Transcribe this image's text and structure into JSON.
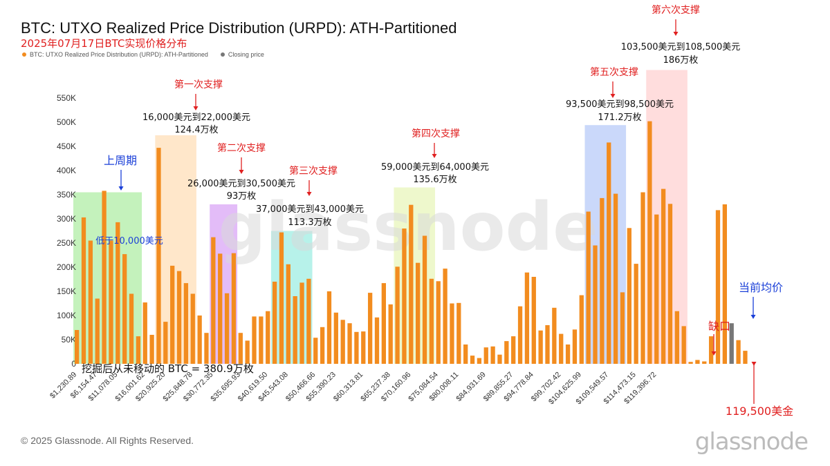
{
  "header": {
    "title": "BTC: UTXO Realized Price Distribution (URPD): ATH-Partitioned",
    "subtitle": "2025年07月17日BTC实现价格分布"
  },
  "legend": [
    {
      "label": "BTC: UTXO Realized Price Distribution (URPD): ATH-Partitioned",
      "color": "#f28c1f"
    },
    {
      "label": "Closing price",
      "color": "#777777"
    }
  ],
  "footer": {
    "copyright": "© 2025 Glassnode. All Rights Reserved.",
    "brand": "glassnode",
    "watermark": "glassnode"
  },
  "chart_data": {
    "type": "bar",
    "ylim": [
      0,
      550000
    ],
    "y_ticks": [
      {
        "value": 0,
        "label": "0"
      },
      {
        "value": 50000,
        "label": "50K"
      },
      {
        "value": 100000,
        "label": "100K"
      },
      {
        "value": 150000,
        "label": "150K"
      },
      {
        "value": 200000,
        "label": "200K"
      },
      {
        "value": 250000,
        "label": "250K"
      },
      {
        "value": 300000,
        "label": "300K"
      },
      {
        "value": 350000,
        "label": "350K"
      },
      {
        "value": 400000,
        "label": "400K"
      },
      {
        "value": 450000,
        "label": "450K"
      },
      {
        "value": 500000,
        "label": "500K"
      },
      {
        "value": 550000,
        "label": "550K"
      }
    ],
    "x_ticks": [
      {
        "index": 0,
        "label": "$1,230.89"
      },
      {
        "index": 3,
        "label": "$6,154.47"
      },
      {
        "index": 6,
        "label": "$11,078.05"
      },
      {
        "index": 10,
        "label": "$16,001.62"
      },
      {
        "index": 13,
        "label": "$20,925.20"
      },
      {
        "index": 17,
        "label": "$25,848.78"
      },
      {
        "index": 20,
        "label": "$30,772.35"
      },
      {
        "index": 24,
        "label": "$35,695.93"
      },
      {
        "index": 28,
        "label": "$40,619.50"
      },
      {
        "index": 31,
        "label": "$45,543.08"
      },
      {
        "index": 35,
        "label": "$50,466.66"
      },
      {
        "index": 38,
        "label": "$55,390.23"
      },
      {
        "index": 42,
        "label": "$60,313.81"
      },
      {
        "index": 46,
        "label": "$65,237.38"
      },
      {
        "index": 49,
        "label": "$70,160.96"
      },
      {
        "index": 53,
        "label": "$75,084.54"
      },
      {
        "index": 56,
        "label": "$80,008.11"
      },
      {
        "index": 60,
        "label": "$84,931.69"
      },
      {
        "index": 64,
        "label": "$89,855.27"
      },
      {
        "index": 67,
        "label": "$94,778.84"
      },
      {
        "index": 71,
        "label": "$99,702.42"
      },
      {
        "index": 74,
        "label": "$104,625.99"
      },
      {
        "index": 78,
        "label": "$109,549.57"
      },
      {
        "index": 82,
        "label": "$114,473.15"
      },
      {
        "index": 85,
        "label": "$119,396.72"
      }
    ],
    "bars": [
      70000,
      303000,
      255000,
      135000,
      358000,
      255000,
      293000,
      227000,
      145000,
      57000,
      127000,
      60000,
      447000,
      87000,
      203000,
      192000,
      167000,
      145000,
      100000,
      64000,
      262000,
      228000,
      146000,
      229000,
      64000,
      48000,
      98000,
      98000,
      109000,
      170000,
      272000,
      206000,
      140000,
      168000,
      176000,
      54000,
      76000,
      150000,
      106000,
      91000,
      84000,
      66000,
      67000,
      147000,
      96000,
      167000,
      123000,
      201000,
      280000,
      329000,
      209000,
      265000,
      176000,
      171000,
      197000,
      125000,
      126000,
      40000,
      17000,
      12000,
      34000,
      36000,
      19000,
      47000,
      57000,
      119000,
      189000,
      180000,
      69000,
      80000,
      116000,
      62000,
      40000,
      71000,
      142000,
      315000,
      245000,
      343000,
      458000,
      352000,
      148000,
      281000,
      207000,
      355000,
      502000,
      309000,
      362000,
      331000,
      109000,
      78000,
      4000,
      8000,
      5000,
      57000,
      318000,
      330000,
      84000,
      49000,
      27000
    ],
    "closing_price_index": 96,
    "zones": [
      {
        "start": 0,
        "end": 9,
        "color": "#7ce36a",
        "top": 355000
      },
      {
        "start": 12,
        "end": 17,
        "color": "#ffc98a",
        "top": 473000
      },
      {
        "start": 20,
        "end": 23,
        "color": "#c06bf0",
        "top": 330000
      },
      {
        "start": 29,
        "end": 34,
        "color": "#5fe3d0",
        "top": 275000
      },
      {
        "start": 47,
        "end": 52,
        "color": "#d9ef8f",
        "top": 365000
      },
      {
        "start": 75,
        "end": 80,
        "color": "#8aa8f5",
        "top": 494000
      },
      {
        "start": 84,
        "end": 89,
        "color": "#ffb3b3",
        "top": 608000
      }
    ],
    "annotations": {
      "prev_cycle": "上周期",
      "below_10k": "低于10,000美元",
      "support1_title": "第一次支撑",
      "support1_range": "16,000美元到22,000美元",
      "support1_amount": "124.4万枚",
      "support2_title": "第二次支撑",
      "support2_range": "26,000美元到30,500美元",
      "support2_amount": "93万枚",
      "support3_title": "第三次支撑",
      "support3_range": "37,000美元到43,000美元",
      "support3_amount": "113.3万枚",
      "support4_title": "第四次支撑",
      "support4_range": "59,000美元到64,000美元",
      "support4_amount": "135.6万枚",
      "support5_title": "第五次支撑",
      "support5_range": "93,500美元到98,500美元",
      "support5_amount": "171.2万枚",
      "support6_title": "第六次支撑",
      "support6_range": "103,500美元到108,500美元",
      "support6_amount": "186万枚",
      "gap": "缺口",
      "current_avg": "当前均价",
      "price_119500": "119,500美金",
      "unmoved": "挖掘后从未移动的 BTC = 380.9万枚"
    },
    "colors": {
      "bar": "#f28c1f",
      "closing": "#777777",
      "red_text": "#e02020",
      "blue_text": "#1a3fd8"
    }
  }
}
